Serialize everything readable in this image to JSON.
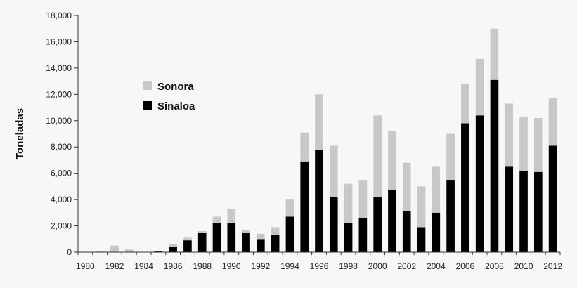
{
  "chart_data": {
    "type": "bar",
    "stacked": true,
    "ylabel": "Toneladas",
    "ylim": [
      0,
      18000
    ],
    "y_ticks": [
      "0",
      "2,000",
      "4,000",
      "6,000",
      "8,000",
      "10,000",
      "12,000",
      "14,000",
      "16,000",
      "18,000"
    ],
    "categories": [
      "1980",
      "1981",
      "1982",
      "1983",
      "1984",
      "1985",
      "1986",
      "1987",
      "1988",
      "1989",
      "1990",
      "1991",
      "1992",
      "1993",
      "1994",
      "1995",
      "1996",
      "1997",
      "1998",
      "1999",
      "2000",
      "2001",
      "2002",
      "2003",
      "2004",
      "2005",
      "2006",
      "2007",
      "2008",
      "2009",
      "2010",
      "2011",
      "2012"
    ],
    "x_tick_labels": [
      "1980",
      "1982",
      "1984",
      "1986",
      "1988",
      "1990",
      "1992",
      "1994",
      "1996",
      "1998",
      "2000",
      "2002",
      "2004",
      "2006",
      "2008",
      "2010",
      "2012"
    ],
    "legend_position": "upper-left",
    "series": [
      {
        "name": "Sinaloa",
        "color": "#000000",
        "values": [
          0,
          0,
          0,
          0,
          0,
          100,
          400,
          900,
          1500,
          2200,
          2200,
          1500,
          1000,
          1300,
          2700,
          6900,
          7800,
          4200,
          2200,
          2600,
          4200,
          4700,
          3100,
          1900,
          3000,
          5500,
          9800,
          10400,
          13100,
          6500,
          6200,
          6100,
          8100
        ]
      },
      {
        "name": "Sonora",
        "color": "#c8c8c8",
        "values": [
          0,
          50,
          500,
          200,
          0,
          0,
          200,
          200,
          100,
          500,
          1100,
          200,
          400,
          600,
          1300,
          2200,
          4200,
          3900,
          3000,
          2900,
          6200,
          4500,
          3700,
          3100,
          3500,
          3500,
          3000,
          4300,
          3900,
          4800,
          4100,
          4100,
          3600
        ]
      }
    ],
    "legend": [
      "Sonora",
      "Sinaloa"
    ]
  }
}
